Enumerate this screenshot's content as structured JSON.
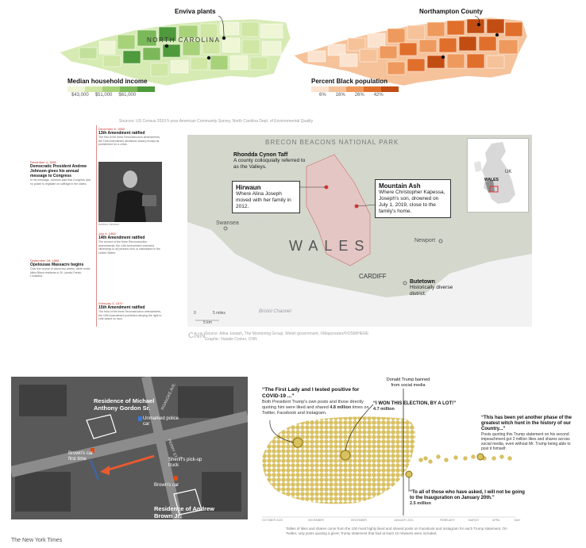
{
  "nc_income": {
    "annotation": "Enviva plants",
    "state_label": "NORTH CAROLINA",
    "legend_title": "Median household income",
    "legend_ticks": [
      "$43,000",
      "$51,000",
      "$61,000"
    ],
    "colors": [
      "#eef6d6",
      "#cfe6a4",
      "#a8d27a",
      "#7bb85a",
      "#4e9a3c"
    ]
  },
  "nc_black": {
    "annotation": "Northampton County",
    "legend_title": "Percent Black population",
    "legend_ticks": [
      "6%",
      "16%",
      "26%",
      "42%"
    ],
    "colors": [
      "#fbe3cf",
      "#f6c29a",
      "#ee9a5e",
      "#e06f2c",
      "#c24d12"
    ]
  },
  "source_line": "Sources: US Census 2019 5-year American Community Survey, North Carolina Dept. of Environmental Quality",
  "timeline": {
    "entries": [
      {
        "date": "December 6, 1865",
        "title": "13th Amendment ratified",
        "body": "The first of the three Reconstruction amendments, the 13th Amendment abolished slavery except as punishment for a crime."
      },
      {
        "date": "December 4, 1865",
        "title": "Democratic President Andrew Johnson gives his annual message to Congress",
        "body": "In his message, Johnson said that Congress had no power to legislate on suffrage in the states."
      },
      {
        "date": "July 9, 1868",
        "title": "14th Amendment ratified",
        "body": "The second of the three Reconstruction amendments, the 14th Amendment extended citizenship to all persons born or naturalized in the United States."
      },
      {
        "date": "September 28, 1868",
        "title": "Opelousas Massacre begins",
        "body": "Over the course of about two weeks, white mobs killed Black residents in St. Landry Parish, Louisiana."
      },
      {
        "date": "February 3, 1870",
        "title": "15th Amendment ratified",
        "body": "The third of the three Reconstruction amendments, the 15th Amendment prohibited denying the right to vote based on race."
      }
    ],
    "portrait_caption": "Andrew Johnson"
  },
  "wales": {
    "park_label": "BRECON BEACONS NATIONAL PARK",
    "country_label": "WALES",
    "callout_rhondda_title": "Rhondda Cynon Taff",
    "callout_rhondda_text": "A county colloquially referred to as the Valleys.",
    "callout_hirwaun_title": "Hirwaun",
    "callout_hirwaun_text": "Where Alina Joseph moved with her family in 2012.",
    "callout_mountain_title": "Mountain Ash",
    "callout_mountain_text": "Where Christopher Kapessa, Joseph's son, drowned on July 1, 2019, close to the family's home.",
    "callout_butetown_title": "Butetown",
    "callout_butetown_text": "Historically diverse district.",
    "city_swansea": "Swansea",
    "city_newport": "Newport",
    "city_cardiff": "CARDIFF",
    "channel": "Bristol Channel",
    "scale_miles": "5 miles",
    "scale_km": "5 km",
    "scale_zero": "0",
    "inset_uk": "UK",
    "inset_wales": "WALES",
    "logo": "CNN",
    "source": "Source: Alina Joseph, The Monitoring Group, Welsh government, ©Mapcreator/©OSM/HERE",
    "credit": "Graphic: Natalie Croker, CNN"
  },
  "aerial": {
    "label_gordon": "Residence of Michael Anthony Gordon Sr.",
    "label_brown": "Residence of Andrew Brown Jr.",
    "label_police_car": "Unmarked police car",
    "label_brown_car": "Brown's car first time",
    "label_sheriff": "Sheriff's pick-up truck",
    "label_brown_car2": "Brown's car",
    "street_1": "ROANOKE AVE.",
    "street_2": "PERRY ST.",
    "credit": "The New York Times"
  },
  "trump": {
    "top_note": "Donald Trump banned from social media",
    "quote1": "“The First Lady and I tested positive for COVID-19 ...”",
    "quote1_text_a": "Both President Trump's own posts and those directly quoting him were liked and shared ",
    "quote1_bold": "4.8 million",
    "quote1_text_b": " times on Twitter, Facebook and Instagram.",
    "quote2": "“I WON THIS ELECTION, BY A LOT!”",
    "quote2_value": "4.7 million",
    "quote3": "“This has been yet another phase of the greatest witch hunt in the history of our Country...”",
    "quote3_text": "Posts quoting this Trump statement on his second impeachment got 2 million likes and shares across social media, even without Mr. Trump being able to post it himself.",
    "quote4": "“To all of those who have asked, I will not be going to the Inauguration on January 20th.”",
    "quote4_value": "2.5 million",
    "axis_months": [
      "OCTOBER 2020",
      "NOVEMBER",
      "DECEMBER",
      "JANUARY 2021",
      "FEBRUARY",
      "MARCH",
      "APRIL",
      "MAY"
    ],
    "footnote": "Tallies of likes and shares come from the 100 most highly liked and shared posts on Facebook and Instagram for each Trump statement. On Twitter, only posts quoting a given Trump statement that had at least 10 retweets were included.",
    "bubble_color": "#d9c160"
  }
}
